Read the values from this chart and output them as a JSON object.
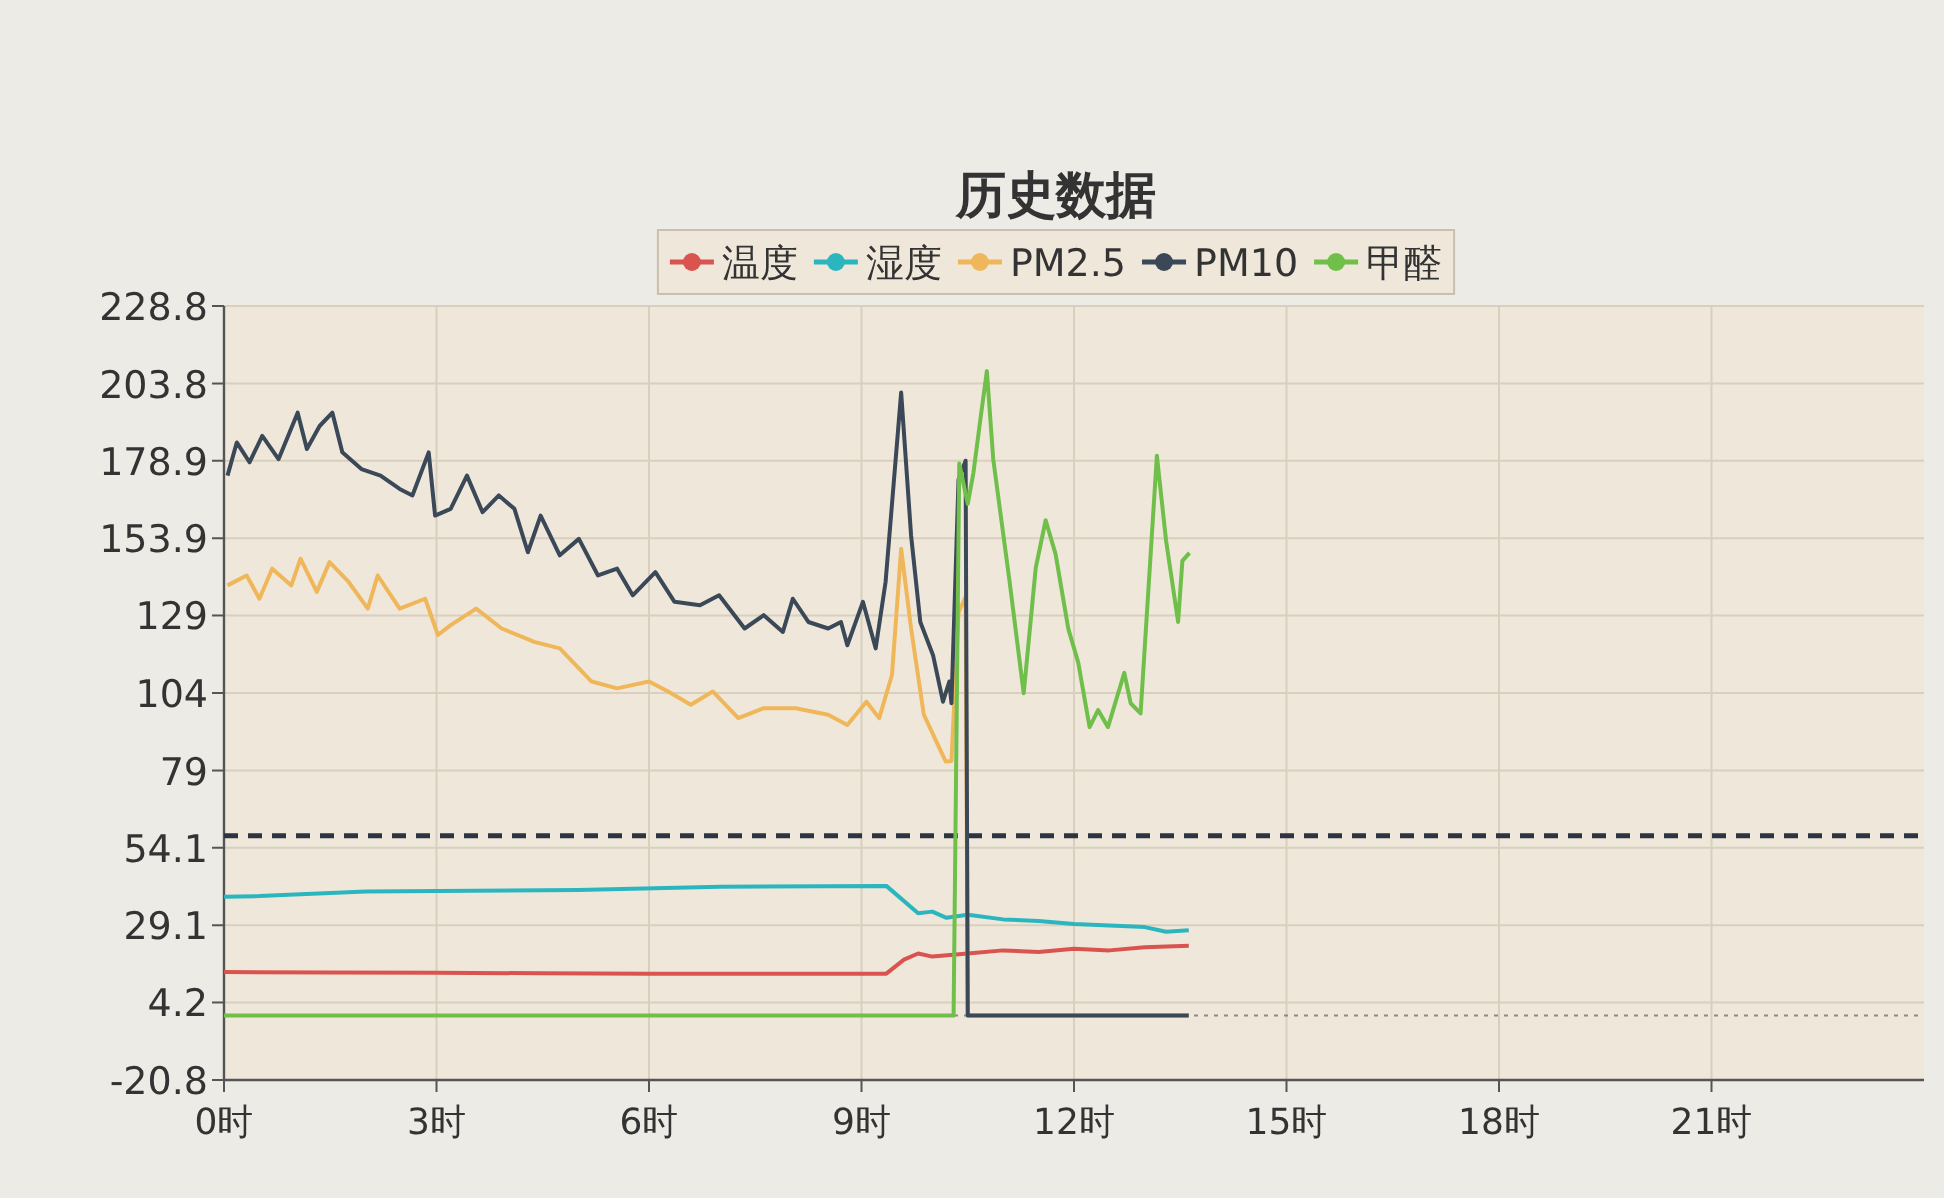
{
  "chart_data": {
    "type": "line",
    "title": "历史数据",
    "legend": "top",
    "grid": true,
    "line_style": "solid",
    "xlim": [
      0,
      24
    ],
    "xticks": [
      {
        "value": 0,
        "label": "0时"
      },
      {
        "value": 3,
        "label": "3时"
      },
      {
        "value": 6,
        "label": "6时"
      },
      {
        "value": 9,
        "label": "9时"
      },
      {
        "value": 12,
        "label": "12时"
      },
      {
        "value": 15,
        "label": "15时"
      },
      {
        "value": 18,
        "label": "18时"
      },
      {
        "value": 21,
        "label": "21时"
      }
    ],
    "ylim": [
      -20.8,
      228.8
    ],
    "yticks": [
      -20.8,
      4.2,
      29.1,
      54.1,
      79,
      104,
      129,
      153.9,
      178.9,
      203.8,
      228.8
    ],
    "ref_lines": [
      {
        "axis": "y",
        "value": 58,
        "color": "#2b3440",
        "line_style": "dashed"
      },
      {
        "axis": "y",
        "value": 0,
        "color": "#8a8a8a",
        "line_style": "dotted"
      }
    ],
    "series": [
      {
        "name": "温度",
        "color": "#d9534f",
        "x": [
          0,
          1.5,
          3,
          4.5,
          6,
          7.5,
          9.35,
          9.6,
          9.8,
          10,
          10.5,
          11,
          11.5,
          12,
          12.5,
          13,
          13.62
        ],
        "values": [
          14,
          13.9,
          13.8,
          13.6,
          13.5,
          13.5,
          13.5,
          18,
          20,
          19,
          20,
          21,
          20.5,
          21.5,
          21,
          22,
          22.5
        ]
      },
      {
        "name": "湿度",
        "color": "#2bb5bf",
        "x": [
          0,
          0.5,
          2,
          5,
          7,
          9.35,
          9.8,
          10,
          10.2,
          10.5,
          11,
          11.5,
          12,
          12.5,
          13,
          13.3,
          13.62
        ],
        "values": [
          38.3,
          38.5,
          40,
          40.5,
          41.5,
          41.8,
          33,
          33.5,
          31.5,
          32.5,
          31,
          30.5,
          29.5,
          29,
          28.5,
          27,
          27.5
        ]
      },
      {
        "name": "PM2.5",
        "color": "#f0b75a",
        "x": [
          0.05,
          0.32,
          0.5,
          0.68,
          0.95,
          1.08,
          1.31,
          1.49,
          1.76,
          2.03,
          2.17,
          2.48,
          2.84,
          3.02,
          3.2,
          3.56,
          3.92,
          4.38,
          4.74,
          5.19,
          5.55,
          6,
          6.27,
          6.59,
          6.9,
          7.26,
          7.62,
          8.07,
          8.53,
          8.8,
          9.07,
          9.25,
          9.43,
          9.56,
          9.7,
          9.88,
          10.1,
          10.19,
          10.27,
          10.37,
          10.47,
          10.5,
          13.62
        ],
        "values": [
          138.7,
          141.9,
          134.4,
          144.1,
          138.7,
          147.3,
          136.6,
          146.2,
          139.8,
          131.2,
          141.9,
          131.2,
          134.4,
          122.7,
          125.9,
          131.2,
          124.8,
          120.5,
          118.4,
          107.7,
          105.5,
          107.7,
          104.5,
          100.2,
          104.5,
          95.9,
          99.1,
          99.1,
          97,
          93.7,
          101.2,
          95.9,
          109.8,
          150.5,
          124.8,
          97,
          86.2,
          81.9,
          82.1,
          130,
          135,
          0,
          0
        ]
      },
      {
        "name": "PM10",
        "color": "#3b4858",
        "x": [
          0.05,
          0.18,
          0.36,
          0.54,
          0.77,
          1.04,
          1.17,
          1.35,
          1.53,
          1.67,
          1.94,
          2.21,
          2.48,
          2.66,
          2.89,
          2.98,
          3.2,
          3.43,
          3.65,
          3.88,
          4.1,
          4.29,
          4.47,
          4.74,
          5.01,
          5.28,
          5.55,
          5.77,
          6.09,
          6.36,
          6.72,
          6.99,
          7.35,
          7.62,
          7.89,
          8.03,
          8.25,
          8.53,
          8.71,
          8.8,
          9.02,
          9.2,
          9.34,
          9.56,
          9.7,
          9.83,
          10.01,
          10.15,
          10.24,
          10.27,
          10.37,
          10.47,
          10.5,
          13.62
        ],
        "values": [
          174.1,
          184.8,
          178.4,
          186.9,
          179.4,
          194.4,
          182.7,
          190.1,
          194.4,
          181.6,
          176.2,
          174.1,
          169.8,
          167.7,
          181.6,
          161.2,
          163.4,
          174.1,
          162.3,
          167.7,
          163.4,
          149.4,
          161.2,
          148.4,
          153.7,
          141.9,
          144.1,
          135.5,
          143,
          133.4,
          132.3,
          135.5,
          124.8,
          129.1,
          123.7,
          134.4,
          126.9,
          124.8,
          126.9,
          119.4,
          133.4,
          118.4,
          139.8,
          200.9,
          154.8,
          126.9,
          116.2,
          101.2,
          107.7,
          100.7,
          172.8,
          178.9,
          0,
          0
        ]
      },
      {
        "name": "甲醛",
        "color": "#6fbf4a",
        "x": [
          0,
          10.3,
          10.38,
          10.5,
          10.58,
          10.68,
          10.77,
          10.86,
          11.09,
          11.29,
          11.46,
          11.6,
          11.74,
          11.92,
          12.06,
          12.22,
          12.34,
          12.48,
          12.71,
          12.8,
          12.94,
          13.17,
          13.3,
          13.47,
          13.53,
          13.63
        ],
        "values": [
          0,
          0,
          178,
          165,
          175,
          192.5,
          207.8,
          179.4,
          140,
          103.9,
          144.4,
          159.7,
          148.8,
          124.7,
          113.8,
          93,
          98.5,
          93,
          110.5,
          100.7,
          97.4,
          180.5,
          153.1,
          126.9,
          146.6,
          149.2
        ]
      }
    ]
  }
}
